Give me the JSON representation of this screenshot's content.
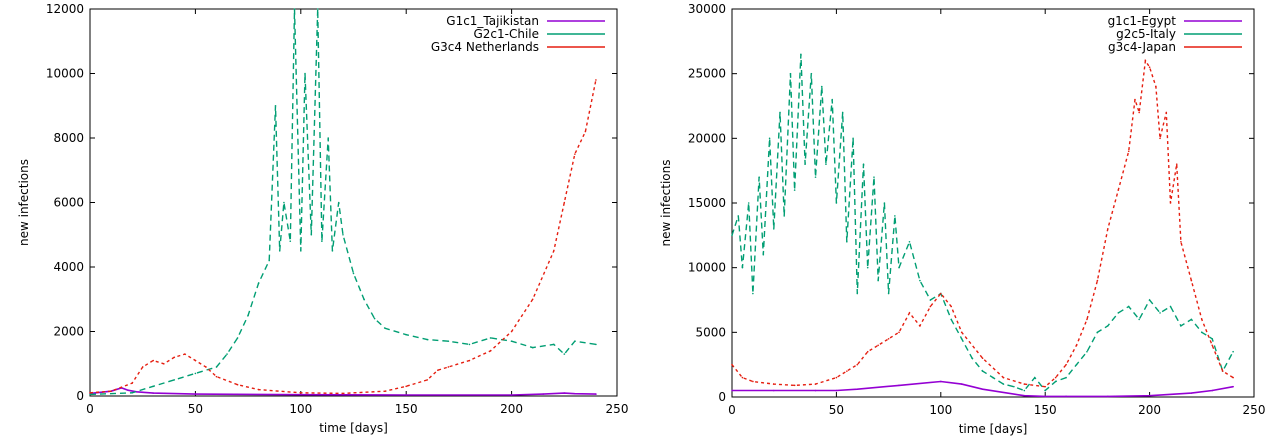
{
  "colors": {
    "purple": "#9400d3",
    "green": "#009e73",
    "red": "#e51e10"
  },
  "chart_data": [
    {
      "type": "line",
      "xlabel": "time [days]",
      "ylabel": "new infections",
      "xlim": [
        0,
        250
      ],
      "ylim": [
        0,
        12000
      ],
      "xticks": [
        "0",
        "50",
        "100",
        "150",
        "200",
        "250"
      ],
      "yticks": [
        "0",
        "2000",
        "4000",
        "6000",
        "8000",
        "10000",
        "12000"
      ],
      "grid": false,
      "legend": "top-right",
      "series": [
        {
          "name": "G1c1_Tajikistan",
          "color": "purple",
          "x": [
            0,
            10,
            15,
            18,
            22,
            30,
            50,
            100,
            150,
            200,
            215,
            225,
            230,
            240
          ],
          "y": [
            80,
            150,
            250,
            180,
            130,
            90,
            60,
            40,
            30,
            30,
            60,
            90,
            70,
            60
          ]
        },
        {
          "name": "G2c1-Chile",
          "color": "green",
          "x": [
            0,
            20,
            30,
            40,
            50,
            60,
            65,
            70,
            75,
            80,
            85,
            88,
            90,
            92,
            95,
            97,
            100,
            102,
            105,
            108,
            110,
            113,
            115,
            118,
            120,
            125,
            130,
            135,
            140,
            150,
            160,
            170,
            180,
            190,
            200,
            210,
            220,
            225,
            230,
            240
          ],
          "y": [
            50,
            100,
            300,
            500,
            700,
            900,
            1300,
            1800,
            2500,
            3500,
            4200,
            9000,
            4500,
            6000,
            4800,
            12000,
            4500,
            10000,
            5000,
            12000,
            4800,
            8000,
            4500,
            6000,
            5000,
            3800,
            3000,
            2400,
            2100,
            1900,
            1750,
            1700,
            1600,
            1800,
            1700,
            1500,
            1600,
            1300,
            1700,
            1600
          ]
        },
        {
          "name": "G3c4 Netherlands",
          "color": "red",
          "x": [
            0,
            10,
            20,
            25,
            30,
            35,
            40,
            45,
            50,
            55,
            60,
            70,
            80,
            100,
            120,
            140,
            150,
            160,
            165,
            170,
            180,
            190,
            200,
            210,
            220,
            225,
            230,
            235,
            240
          ],
          "y": [
            100,
            150,
            400,
            900,
            1100,
            1000,
            1200,
            1300,
            1100,
            900,
            600,
            350,
            200,
            100,
            80,
            150,
            300,
            500,
            800,
            900,
            1100,
            1400,
            2000,
            3000,
            4500,
            6000,
            7500,
            8200,
            9800
          ]
        }
      ]
    },
    {
      "type": "line",
      "xlabel": "time [days]",
      "ylabel": "new infections",
      "xlim": [
        0,
        250
      ],
      "ylim": [
        0,
        30000
      ],
      "xticks": [
        "0",
        "50",
        "100",
        "150",
        "200",
        "250"
      ],
      "yticks": [
        "0",
        "5000",
        "10000",
        "15000",
        "20000",
        "25000",
        "30000"
      ],
      "grid": false,
      "legend": "top-right",
      "series": [
        {
          "name": "g1c1-Egypt",
          "color": "purple",
          "x": [
            0,
            20,
            40,
            50,
            60,
            80,
            100,
            110,
            120,
            140,
            150,
            160,
            180,
            200,
            220,
            230,
            240
          ],
          "y": [
            500,
            500,
            500,
            500,
            600,
            900,
            1200,
            1000,
            600,
            100,
            50,
            50,
            50,
            100,
            300,
            500,
            800
          ]
        },
        {
          "name": "g2c5-Italy",
          "color": "green",
          "x": [
            0,
            3,
            5,
            8,
            10,
            13,
            15,
            18,
            20,
            23,
            25,
            28,
            30,
            33,
            35,
            38,
            40,
            43,
            45,
            48,
            50,
            53,
            55,
            58,
            60,
            63,
            65,
            68,
            70,
            73,
            75,
            78,
            80,
            85,
            90,
            95,
            100,
            105,
            110,
            115,
            120,
            125,
            130,
            135,
            140,
            145,
            150,
            155,
            160,
            165,
            170,
            175,
            180,
            185,
            190,
            195,
            200,
            205,
            210,
            215,
            220,
            225,
            230,
            235,
            240
          ],
          "y": [
            12500,
            14000,
            10000,
            15000,
            8000,
            17000,
            11000,
            20000,
            13000,
            22000,
            14000,
            25000,
            16000,
            26500,
            18000,
            25000,
            17000,
            24000,
            18000,
            23000,
            15000,
            22000,
            12000,
            20000,
            8000,
            18000,
            10000,
            17000,
            9000,
            15000,
            8000,
            14000,
            10000,
            12000,
            9000,
            7500,
            8000,
            6000,
            4500,
            3000,
            2000,
            1500,
            1000,
            800,
            500,
            1500,
            500,
            1200,
            1500,
            2500,
            3500,
            5000,
            5500,
            6500,
            7000,
            6000,
            7500,
            6500,
            7000,
            5500,
            6000,
            5000,
            4500,
            2000,
            3500
          ]
        },
        {
          "name": "g3c4-Japan",
          "color": "red",
          "x": [
            0,
            5,
            10,
            20,
            30,
            40,
            50,
            55,
            60,
            65,
            70,
            75,
            80,
            85,
            90,
            95,
            100,
            105,
            110,
            120,
            130,
            140,
            150,
            155,
            160,
            165,
            170,
            175,
            180,
            185,
            190,
            193,
            195,
            198,
            200,
            203,
            205,
            208,
            210,
            213,
            215,
            220,
            225,
            230,
            235,
            240
          ],
          "y": [
            2500,
            1500,
            1200,
            1000,
            900,
            1000,
            1500,
            2000,
            2500,
            3500,
            4000,
            4500,
            5000,
            6500,
            5500,
            7000,
            8000,
            7000,
            5000,
            3000,
            1500,
            1000,
            800,
            1500,
            2500,
            4000,
            6000,
            9000,
            13000,
            16000,
            19000,
            23000,
            22000,
            26000,
            25500,
            24000,
            20000,
            22000,
            15000,
            18000,
            12000,
            9000,
            6000,
            4000,
            2000,
            1500
          ]
        }
      ]
    }
  ]
}
